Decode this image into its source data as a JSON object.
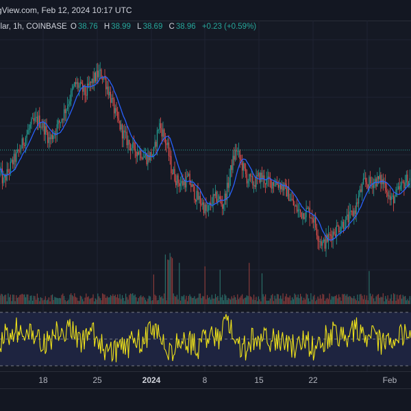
{
  "header": {
    "title": "gView.com, Feb 12, 2024 10:17 UTC"
  },
  "legend": {
    "symbol": "llar, 1h, COINBASE",
    "open_label": "O",
    "open": "38.76",
    "high_label": "H",
    "high": "38.99",
    "low_label": "L",
    "low": "38.69",
    "close_label": "C",
    "close": "38.96",
    "change": "+0.23 (+0.59%)"
  },
  "time_axis": {
    "labels": [
      "18",
      "25",
      "2024",
      "8",
      "15",
      "22",
      "Feb"
    ]
  },
  "colors": {
    "up": "#26a69a",
    "down": "#ef5350",
    "ma": "#2962ff",
    "rsi": "#f1e41a",
    "rsi_band": "#1e2440",
    "background": "#151924"
  },
  "chart_data": {
    "type": "candlestick",
    "interval": "1h",
    "exchange": "COINBASE",
    "last_close": 38.96,
    "price_path": [
      [
        0,
        37.7
      ],
      [
        5,
        37.0
      ],
      [
        10,
        37.5
      ],
      [
        18,
        38.3
      ],
      [
        25,
        38.8
      ],
      [
        35,
        39.8
      ],
      [
        45,
        40.8
      ],
      [
        55,
        41.2
      ],
      [
        65,
        40.6
      ],
      [
        72,
        39.8
      ],
      [
        80,
        40.4
      ],
      [
        90,
        41.3
      ],
      [
        100,
        42.4
      ],
      [
        110,
        43.6
      ],
      [
        118,
        43.3
      ],
      [
        125,
        42.9
      ],
      [
        130,
        43.4
      ],
      [
        137,
        43.9
      ],
      [
        145,
        44.3
      ],
      [
        152,
        44.0
      ],
      [
        160,
        42.9
      ],
      [
        170,
        41.3
      ],
      [
        180,
        40.2
      ],
      [
        188,
        39.6
      ],
      [
        195,
        39.2
      ],
      [
        205,
        39.0
      ],
      [
        215,
        38.6
      ],
      [
        225,
        39.0
      ],
      [
        232,
        40.9
      ],
      [
        238,
        40.3
      ],
      [
        245,
        39.2
      ],
      [
        250,
        37.9
      ],
      [
        258,
        37.1
      ],
      [
        265,
        36.9
      ],
      [
        275,
        37.2
      ],
      [
        285,
        36.1
      ],
      [
        295,
        35.6
      ],
      [
        302,
        34.9
      ],
      [
        310,
        35.8
      ],
      [
        318,
        36.0
      ],
      [
        325,
        35.4
      ],
      [
        332,
        36.6
      ],
      [
        338,
        38.1
      ],
      [
        345,
        39.2
      ],
      [
        352,
        38.3
      ],
      [
        360,
        37.3
      ],
      [
        370,
        36.9
      ],
      [
        380,
        37.4
      ],
      [
        390,
        37.0
      ],
      [
        400,
        37.0
      ],
      [
        410,
        36.8
      ],
      [
        420,
        36.3
      ],
      [
        430,
        35.3
      ],
      [
        440,
        34.9
      ],
      [
        450,
        35.1
      ],
      [
        458,
        34.5
      ],
      [
        465,
        33.3
      ],
      [
        472,
        32.8
      ],
      [
        480,
        33.3
      ],
      [
        490,
        33.8
      ],
      [
        500,
        34.2
      ],
      [
        510,
        34.6
      ],
      [
        518,
        35.1
      ],
      [
        525,
        36.2
      ],
      [
        532,
        37.0
      ],
      [
        540,
        36.9
      ],
      [
        548,
        37.1
      ],
      [
        556,
        37.1
      ],
      [
        563,
        36.8
      ],
      [
        570,
        35.7
      ],
      [
        578,
        36.1
      ],
      [
        585,
        36.6
      ],
      [
        592,
        37.1
      ],
      [
        600,
        37.2
      ]
    ]
  }
}
